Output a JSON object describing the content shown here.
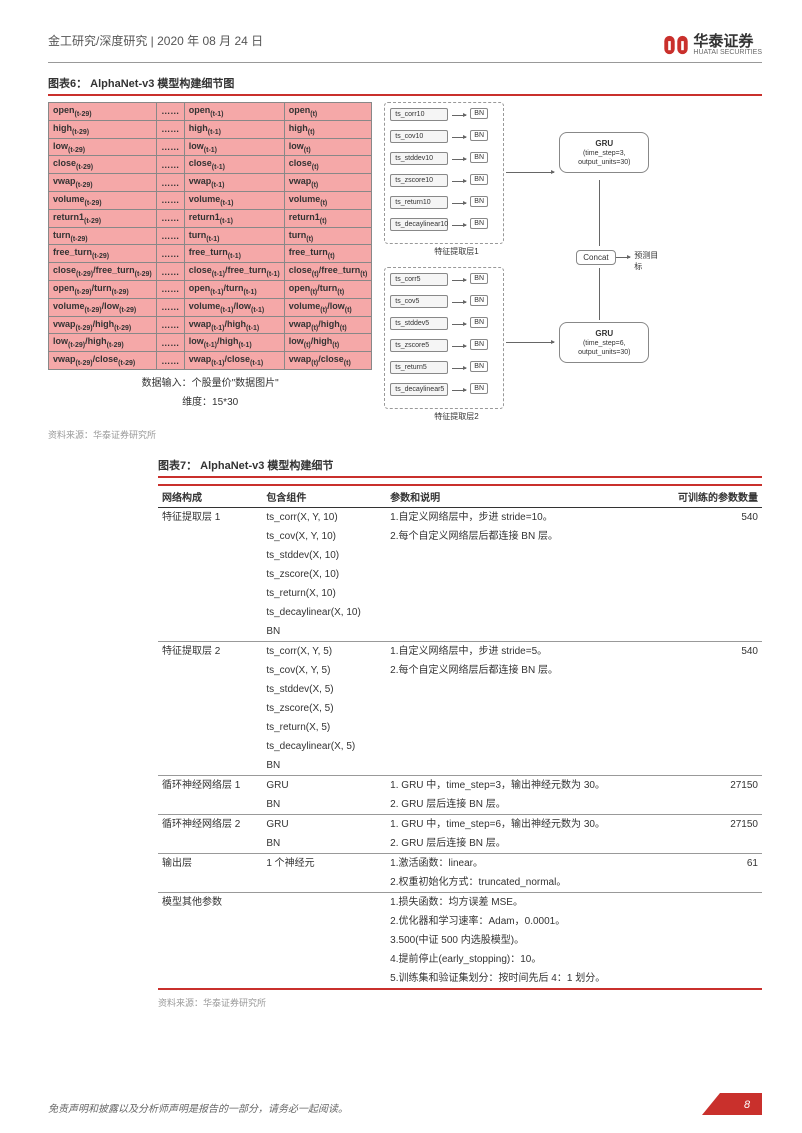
{
  "header": {
    "left": "金工研究/深度研究 | 2020 年 08 月 24 日",
    "company_cn": "华泰证券",
    "company_en": "HUATAI SECURITIES"
  },
  "fig6": {
    "title": "图表6：  AlphaNet-v3 模型构建细节图",
    "pink_rows": [
      [
        "open(t-29)",
        "……",
        "open(t-1)",
        "open(t)"
      ],
      [
        "high(t-29)",
        "……",
        "high(t-1)",
        "high(t)"
      ],
      [
        "low(t-29)",
        "……",
        "low(t-1)",
        "low(t)"
      ],
      [
        "close(t-29)",
        "……",
        "close(t-1)",
        "close(t)"
      ],
      [
        "vwap(t-29)",
        "……",
        "vwap(t-1)",
        "vwap(t)"
      ],
      [
        "volume(t-29)",
        "……",
        "volume(t-1)",
        "volume(t)"
      ],
      [
        "return1(t-29)",
        "……",
        "return1(t-1)",
        "return1(t)"
      ],
      [
        "turn(t-29)",
        "……",
        "turn(t-1)",
        "turn(t)"
      ],
      [
        "free_turn(t-29)",
        "……",
        "free_turn(t-1)",
        "free_turn(t)"
      ],
      [
        "close(t-29)/free_turn(t-29)",
        "……",
        "close(t-1)/free_turn(t-1)",
        "close(t)/free_turn(t)"
      ],
      [
        "open(t-29)/turn(t-29)",
        "……",
        "open(t-1)/turn(t-1)",
        "open(t)/turn(t)"
      ],
      [
        "volume(t-29)/low(t-29)",
        "……",
        "volume(t-1)/low(t-1)",
        "volume(t)/low(t)"
      ],
      [
        "vwap(t-29)/high(t-29)",
        "……",
        "vwap(t-1)/high(t-1)",
        "vwap(t)/high(t)"
      ],
      [
        "low(t-29)/high(t-29)",
        "……",
        "low(t-1)/high(t-1)",
        "low(t)/high(t)"
      ],
      [
        "vwap(t-29)/close(t-29)",
        "……",
        "vwap(t-1)/close(t-1)",
        "vwap(t)/close(t)"
      ]
    ],
    "caption1": "数据输入：个股量价\"数据图片\"",
    "caption2": "维度：15*30",
    "layer1_label": "特征提取层1",
    "layer2_label": "特征提取层2",
    "ops1": [
      "ts_corr10",
      "ts_cov10",
      "ts_stddev10",
      "ts_zscore10",
      "ts_return10",
      "ts_decaylinear10"
    ],
    "ops2": [
      "ts_corr5",
      "ts_cov5",
      "ts_stddev5",
      "ts_zscore5",
      "ts_return5",
      "ts_decaylinear5"
    ],
    "bn": "BN",
    "gru1": "GRU",
    "gru1_sub": "(time_step=3, output_units=30)",
    "gru2": "GRU",
    "gru2_sub": "(time_step=6, output_units=30)",
    "concat": "Concat",
    "pred": "预测目标",
    "source": "资料来源：华泰证券研究所"
  },
  "fig7": {
    "title": "图表7：  AlphaNet-v3 模型构建细节",
    "headers": [
      "网络构成",
      "包含组件",
      "参数和说明",
      "可训练的参数数量"
    ],
    "rows": [
      {
        "c0": "特征提取层 1",
        "c1": "ts_corr(X, Y, 10)\nts_cov(X, Y, 10)\nts_stddev(X, 10)\nts_zscore(X, 10)\nts_return(X, 10)\nts_decaylinear(X, 10)\nBN",
        "c2": "1.自定义网络层中，步进 stride=10。\n2.每个自定义网络层后都连接 BN 层。",
        "c3": "540"
      },
      {
        "c0": "特征提取层 2",
        "c1": "ts_corr(X, Y, 5)\nts_cov(X, Y, 5)\nts_stddev(X, 5)\nts_zscore(X, 5)\nts_return(X, 5)\nts_decaylinear(X, 5)\nBN",
        "c2": "1.自定义网络层中，步进 stride=5。\n2.每个自定义网络层后都连接 BN 层。",
        "c3": "540"
      },
      {
        "c0": "循环神经网络层 1",
        "c1": "GRU\nBN",
        "c2": "1. GRU 中，time_step=3，输出神经元数为 30。\n2. GRU 层后连接 BN 层。",
        "c3": "27150"
      },
      {
        "c0": "循环神经网络层 2",
        "c1": "GRU\nBN",
        "c2": "1. GRU 中，time_step=6，输出神经元数为 30。\n2. GRU 层后连接 BN 层。",
        "c3": "27150"
      },
      {
        "c0": "输出层",
        "c1": "1 个神经元",
        "c2": "1.激活函数：linear。\n2.权重初始化方式：truncated_normal。",
        "c3": "61"
      },
      {
        "c0": "模型其他参数",
        "c1": "",
        "c2": "1.损失函数：均方误差 MSE。\n2.优化器和学习速率：Adam，0.0001。\n3.500(中证 500 内选股模型)。\n4.提前停止(early_stopping)：10。\n5.训练集和验证集划分：按时间先后 4：1 划分。",
        "c3": ""
      }
    ],
    "source": "资料来源：华泰证券研究所"
  },
  "footer": {
    "disclaimer": "免责声明和披露以及分析师声明是报告的一部分，请务必一起阅读。",
    "page": "8"
  }
}
